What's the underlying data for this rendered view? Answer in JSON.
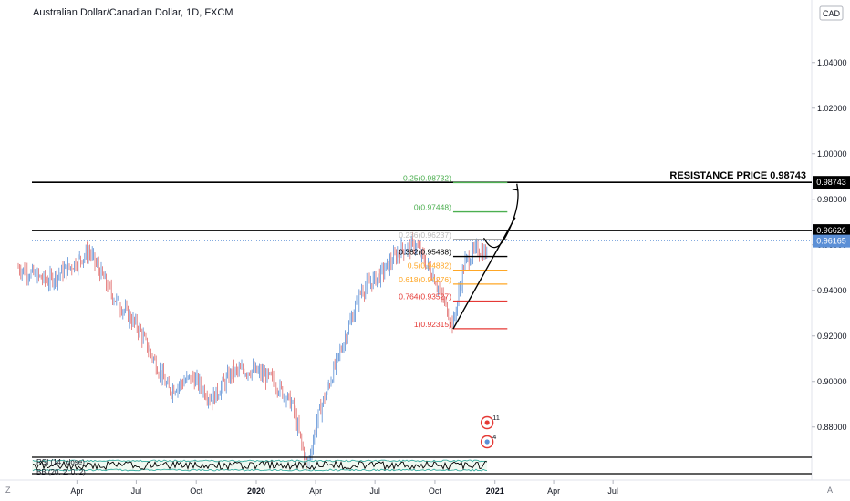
{
  "chart_title": "Australian Dollar/Canadian Dollar, 1D, FXCM",
  "currency": "CAD",
  "corner_left": "Z",
  "corner_right": "A",
  "colors": {
    "up": "#5b8fd6",
    "down": "#e06b6b",
    "black": "#000000",
    "price_line": "#5b8fd6",
    "fib_green": "#4caf50",
    "fib_orange": "#ffa726",
    "fib_red": "#e53935",
    "rsi_line": "#000000",
    "rsi_band": "#26a69a"
  },
  "chart_data": {
    "type": "candlestick",
    "symbol": "AUDCAD",
    "timeframe": "1D",
    "x_axis_labels": [
      "Apr",
      "Jul",
      "Oct",
      "2020",
      "Apr",
      "Jul",
      "Oct",
      "2021",
      "Apr",
      "Jul"
    ],
    "y_axis_labels": [
      "1.04000",
      "1.02000",
      "1.00000",
      "0.98000",
      "0.96000",
      "0.94000",
      "0.92000",
      "0.90000",
      "0.88000"
    ],
    "ylim": [
      0.8675,
      1.0675
    ],
    "price_path": [
      {
        "t": "2019-01-01",
        "p": 0.95
      },
      {
        "t": "2019-02-15",
        "p": 0.944
      },
      {
        "t": "2019-03-20",
        "p": 0.95
      },
      {
        "t": "2019-04-20",
        "p": 0.957
      },
      {
        "t": "2019-05-25",
        "p": 0.938
      },
      {
        "t": "2019-07-05",
        "p": 0.923
      },
      {
        "t": "2019-08-20",
        "p": 0.896
      },
      {
        "t": "2019-09-25",
        "p": 0.902
      },
      {
        "t": "2019-10-25",
        "p": 0.892
      },
      {
        "t": "2019-11-25",
        "p": 0.904
      },
      {
        "t": "2019-12-25",
        "p": 0.905
      },
      {
        "t": "2020-01-25",
        "p": 0.901
      },
      {
        "t": "2020-02-25",
        "p": 0.89
      },
      {
        "t": "2020-03-19",
        "p": 0.862
      },
      {
        "t": "2020-04-05",
        "p": 0.885
      },
      {
        "t": "2020-05-05",
        "p": 0.91
      },
      {
        "t": "2020-06-10",
        "p": 0.94
      },
      {
        "t": "2020-07-10",
        "p": 0.947
      },
      {
        "t": "2020-08-10",
        "p": 0.958
      },
      {
        "t": "2020-09-01",
        "p": 0.96
      },
      {
        "t": "2020-10-01",
        "p": 0.945
      },
      {
        "t": "2020-10-29",
        "p": 0.925
      },
      {
        "t": "2020-11-15",
        "p": 0.952
      },
      {
        "t": "2020-12-05",
        "p": 0.958
      },
      {
        "t": "2020-12-20",
        "p": 0.956
      }
    ],
    "horizontal_levels": [
      {
        "label": "RESISTANCE PRICE 0.98743",
        "value": 0.98743
      },
      {
        "label": "",
        "value": 0.96626
      }
    ],
    "current_price": 0.96165,
    "price_tags": [
      "0.98743",
      "0.96626",
      "0.96165"
    ],
    "fibonacci": [
      {
        "label": "-0.25(0.98732)",
        "ratio": -0.25,
        "value": 0.98732,
        "color": "#4caf50"
      },
      {
        "label": "0(0.97448)",
        "ratio": 0,
        "value": 0.97448,
        "color": "#4caf50"
      },
      {
        "label": "0.236(0.96237)",
        "ratio": 0.236,
        "value": 0.96237,
        "color": "#9e9e9e"
      },
      {
        "label": "0.382(0.95488)",
        "ratio": 0.382,
        "value": 0.95488,
        "color": "#000000"
      },
      {
        "label": "0.5(0.94882)",
        "ratio": 0.5,
        "value": 0.94882,
        "color": "#ffa726"
      },
      {
        "label": "0.618(0.94276)",
        "ratio": 0.618,
        "value": 0.94276,
        "color": "#ffa726"
      },
      {
        "label": "0.764(0.93527)",
        "ratio": 0.764,
        "value": 0.93527,
        "color": "#e53935"
      },
      {
        "label": "1(0.92315)",
        "ratio": 1,
        "value": 0.92315,
        "color": "#e53935"
      }
    ],
    "trendline": {
      "from": {
        "t": "2020-10-29",
        "p": 0.9231
      },
      "to": {
        "t": "2021-02-01",
        "p": 0.972
      }
    },
    "projection_arrow": {
      "points": [
        {
          "t": "2020-12-15",
          "p": 0.963
        },
        {
          "t": "2021-01-01",
          "p": 0.957
        },
        {
          "t": "2021-01-20",
          "p": 0.965
        },
        {
          "t": "2021-02-05",
          "p": 0.984
        }
      ]
    },
    "event_badges": [
      {
        "label": "11"
      },
      {
        "label": "4"
      }
    ],
    "indicators": [
      {
        "name": "RSI",
        "label": "RSI (14, close)"
      },
      {
        "name": "BB",
        "label": "BB (20, 2, 0, 2)"
      }
    ]
  }
}
